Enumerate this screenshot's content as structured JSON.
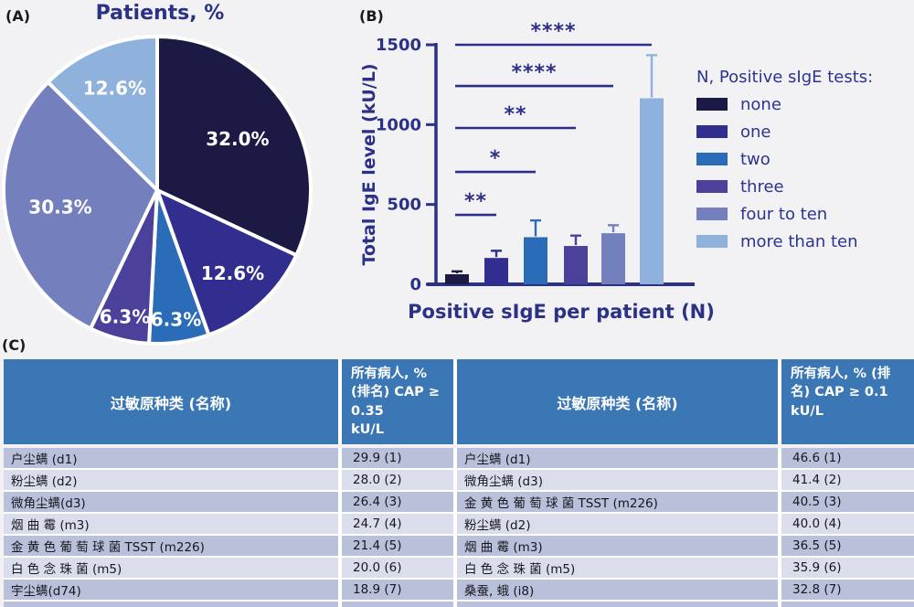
{
  "panels": {
    "a_label": "(A)",
    "b_label": "(B)",
    "c_label": "(C)"
  },
  "colors": {
    "navy": "#1a1a45",
    "indigo": "#312e8f",
    "blue": "#2b6cb8",
    "purple": "#4b409a",
    "slate": "#747fbe",
    "light_blue": "#8fb2dc",
    "axis_text": "#2b3186",
    "star": "#2c2f87",
    "table_header_bg": "#3b76b5",
    "row_dark": "#b8c0da",
    "row_light": "#dadeec",
    "background": "#f2f2f4"
  },
  "chart_data": [
    {
      "type": "pie",
      "title": "Patients, %",
      "direction": "clockwise",
      "start_angle_deg": 0,
      "slices": [
        {
          "name": "none",
          "value": 32.0,
          "label": "32.0%",
          "color": "#1a1a45",
          "label_r": 0.62
        },
        {
          "name": "one",
          "value": 12.6,
          "label": "12.6%",
          "color": "#312e8f",
          "label_r": 0.73
        },
        {
          "name": "two",
          "value": 6.3,
          "label": "6.3%",
          "color": "#2b6cb8",
          "label_r": 0.85
        },
        {
          "name": "three",
          "value": 6.3,
          "label": "6.3%",
          "color": "#4b409a",
          "label_r": 0.85
        },
        {
          "name": "four to ten",
          "value": 30.3,
          "label": "30.3%",
          "color": "#747fbe",
          "label_r": 0.64
        },
        {
          "name": "more than ten",
          "value": 12.6,
          "label": "12.6%",
          "color": "#8fb2dc",
          "label_r": 0.72
        }
      ]
    },
    {
      "type": "bar",
      "xlabel": "Positive sIgE per patient (N)",
      "ylabel": "Total IgE level (kU/L)",
      "ylim": [
        0,
        1500
      ],
      "yticks": [
        0,
        500,
        1000,
        1500
      ],
      "grid": false,
      "categories": [
        "none",
        "one",
        "two",
        "three",
        "four to ten",
        "more than ten"
      ],
      "values": [
        63,
        165,
        295,
        240,
        320,
        1165
      ],
      "upper_errors": [
        18,
        45,
        105,
        65,
        50,
        270
      ],
      "bar_colors": [
        "#1a1a45",
        "#312e8f",
        "#2b6cb8",
        "#4b409a",
        "#747fbe",
        "#8fb2dc"
      ],
      "legend_title": "N, Positive sIgE tests:",
      "legend_position": "right",
      "significance": [
        {
          "from": "none",
          "to": "one",
          "label": "**",
          "line_y": 435
        },
        {
          "from": "none",
          "to": "two",
          "label": "*",
          "line_y": 704
        },
        {
          "from": "none",
          "to": "three",
          "label": "**",
          "line_y": 979
        },
        {
          "from": "none",
          "to": "four to ten",
          "label": "****",
          "line_y": 1242
        },
        {
          "from": "none",
          "to": "more than ten",
          "label": "****",
          "line_y": 1500
        }
      ]
    }
  ],
  "table": {
    "left": {
      "name_header": "过敏原种类 (名称)",
      "value_header": "所有病人, %\n(排名)   CAP ≥\n 0.35\nkU/L",
      "rows": [
        {
          "name": "户尘螨 (d1)",
          "value": "29.9 (1)"
        },
        {
          "name": "粉尘螨 (d2)",
          "value": "28.0 (2)"
        },
        {
          "name": "微角尘螨(d3)",
          "value": "26.4 (3)"
        },
        {
          "name": "烟 曲 霉 (m3)",
          "value": "24.7 (4)"
        },
        {
          "name": "金 黄 色 葡 萄 球 菌 TSST (m226)",
          "value": "21.4 (5)"
        },
        {
          "name": "白 色 念 珠 菌 (m5)",
          "value": "20.0 (6)"
        },
        {
          "name": "宇尘螨(d74)",
          "value": "18.9 (7)"
        }
      ],
      "partial_row_visible": true
    },
    "right": {
      "name_header": "过敏原种类 (名称)",
      "value_header": "所有病人, % (排\n名)   CAP ≥ 0.1\nkU/L",
      "rows": [
        {
          "name": "户尘螨 (d1)",
          "value": "46.6 (1)"
        },
        {
          "name": "微角尘螨 (d3)",
          "value": "41.4 (2)"
        },
        {
          "name": "金 黄 色 葡 萄 球 菌 TSST (m226)",
          "value": "40.5 (3)"
        },
        {
          "name": "粉尘螨 (d2)",
          "value": "40.0 (4)"
        },
        {
          "name": "烟 曲 霉 (m3)",
          "value": "36.5 (5)"
        },
        {
          "name": "白 色 念 珠 菌 (m5)",
          "value": "35.9 (6)"
        },
        {
          "name": "桑蚕, 蛾 (i8)",
          "value": "32.8 (7)"
        }
      ],
      "partial_row_visible": true
    }
  }
}
